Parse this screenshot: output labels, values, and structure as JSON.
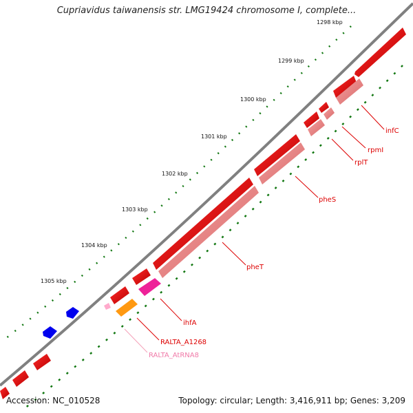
{
  "map": {
    "title": "Cupriavidus taiwanensis str. LMG19424 chromosome I, complete...",
    "accession": "Accession: NC_010528",
    "summary": "Topology: circular; Length: 3,416,911 bp; Genes: 3,209"
  },
  "ticks": [
    "1298 kbp",
    "1299 kbp",
    "1300 kbp",
    "1301 kbp",
    "1302 kbp",
    "1303 kbp",
    "1304 kbp",
    "1305 kbp"
  ],
  "genes": [
    "infC",
    "rpmI",
    "rplT",
    "pheS",
    "pheT",
    "ihfA",
    "RALTA_A1268",
    "RALTA_AtRNA8"
  ],
  "colors": {
    "forward_cds": "#ee0000",
    "reverse_cds": "#ee8888",
    "ihfA": "#ee2299",
    "RALTA_A1268": "#ff9911",
    "trna": "#ffaacc",
    "other_strand": "#0000ee",
    "backbone": "#808080",
    "gc_dots": "#117711"
  }
}
